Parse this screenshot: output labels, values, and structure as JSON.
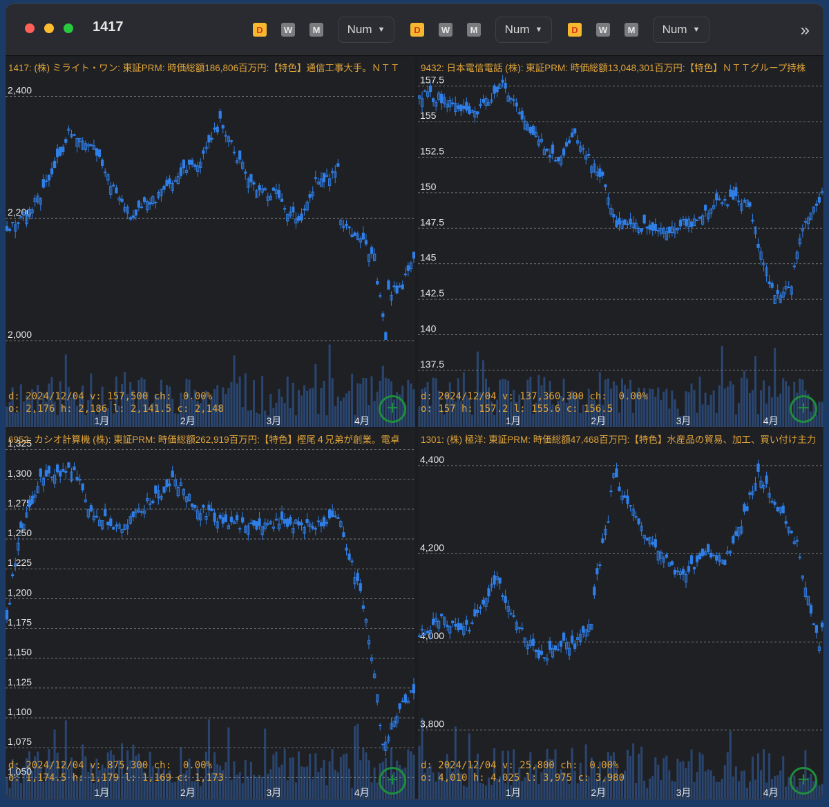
{
  "window": {
    "title": "1417"
  },
  "toolbar": {
    "groups": [
      {
        "d": "D",
        "w": "W",
        "m": "M",
        "num": "Num"
      },
      {
        "d": "D",
        "w": "W",
        "m": "M",
        "num": "Num"
      },
      {
        "d": "D",
        "w": "W",
        "m": "M",
        "num": "Num"
      }
    ],
    "more_icon": "chevrons-right-icon"
  },
  "colors": {
    "candle": "#2f7fe8",
    "volume": "#2a4670",
    "header_text": "#e0a43a",
    "plus": "#1f8e3c"
  },
  "chart_data": [
    {
      "type": "candlestick",
      "header": "1417: (株) ミライト・ワン: 東証PRM: 時価総額186,806百万円:【特色】通信工事大手。ＮＴＴ",
      "y_ticks": [
        "2,400",
        "2,200",
        "2,000"
      ],
      "y_values": [
        2400,
        2200,
        2000
      ],
      "ylim": [
        1870,
        2440
      ],
      "x_ticks": [
        "1月",
        "2月",
        "3月",
        "4月"
      ],
      "info_line1": "d: 2024/12/04 v: 157,500 ch:  0.00%",
      "info_line2": "o: 2,176 h: 2,186 l: 2,141.5 c: 2,148",
      "anchors": [
        [
          0,
          2185
        ],
        [
          8,
          2210
        ],
        [
          16,
          2270
        ],
        [
          22,
          2340
        ],
        [
          32,
          2310
        ],
        [
          38,
          2250
        ],
        [
          44,
          2205
        ],
        [
          52,
          2230
        ],
        [
          60,
          2270
        ],
        [
          70,
          2300
        ],
        [
          76,
          2360
        ],
        [
          82,
          2300
        ],
        [
          90,
          2245
        ],
        [
          96,
          2240
        ],
        [
          104,
          2190
        ],
        [
          110,
          2260
        ],
        [
          118,
          2280
        ],
        [
          119,
          2190
        ],
        [
          125,
          2170
        ],
        [
          131,
          2135
        ],
        [
          135,
          2000
        ],
        [
          136,
          2080
        ],
        [
          141,
          2090
        ],
        [
          145,
          2140
        ]
      ],
      "seed": 11
    },
    {
      "type": "candlestick",
      "header": "9432: 日本電信電話 (株): 東証PRM: 時価総額13,048,301百万円:【特色】ＮＴＴグループ持株",
      "y_ticks": [
        "157.5",
        "155",
        "152.5",
        "150",
        "147.5",
        "145",
        "142.5",
        "140",
        "137.5"
      ],
      "y_values": [
        157.5,
        155,
        152.5,
        150,
        147.5,
        145,
        142.5,
        140,
        137.5
      ],
      "ylim": [
        134,
        158.5
      ],
      "x_ticks": [
        "1月",
        "2月",
        "3月",
        "4月"
      ],
      "info_line1": "d: 2024/12/04 v: 137,360,300 ch:  0.00%",
      "info_line2": "o: 157 h: 157.2 l: 155.6 c: 156.5",
      "anchors": [
        [
          0,
          157
        ],
        [
          10,
          156.5
        ],
        [
          20,
          155.5
        ],
        [
          30,
          157.5
        ],
        [
          40,
          154.5
        ],
        [
          50,
          152
        ],
        [
          56,
          154
        ],
        [
          66,
          151
        ],
        [
          70,
          148
        ],
        [
          80,
          147.5
        ],
        [
          90,
          147.5
        ],
        [
          100,
          148
        ],
        [
          108,
          149.5
        ],
        [
          118,
          149.5
        ],
        [
          122,
          146.5
        ],
        [
          128,
          142.5
        ],
        [
          134,
          143.5
        ],
        [
          138,
          147.5
        ],
        [
          145,
          150
        ]
      ],
      "seed": 29
    },
    {
      "type": "candlestick",
      "header": "6952: カシオ計算機 (株): 東証PRM: 時価総額262,919百万円:【特色】樫尾４兄弟が創業。電卓",
      "y_ticks": [
        "1,325",
        "1,300",
        "1,275",
        "1,250",
        "1,225",
        "1,200",
        "1,175",
        "1,150",
        "1,125",
        "1,100",
        "1,075",
        "1,050"
      ],
      "y_values": [
        1325,
        1300,
        1275,
        1250,
        1225,
        1200,
        1175,
        1150,
        1125,
        1100,
        1075,
        1050
      ],
      "ylim": [
        1038,
        1330
      ],
      "x_ticks": [
        "1月",
        "2月",
        "3月",
        "4月"
      ],
      "info_line1": "d: 2024/12/04 v: 875,300 ch:  0.00%",
      "info_line2": "o: 1,174.5 h: 1,179 l: 1,169 c: 1,173",
      "anchors": [
        [
          0,
          1185
        ],
        [
          5,
          1260
        ],
        [
          12,
          1300
        ],
        [
          24,
          1310
        ],
        [
          30,
          1270
        ],
        [
          40,
          1260
        ],
        [
          50,
          1280
        ],
        [
          60,
          1300
        ],
        [
          68,
          1275
        ],
        [
          78,
          1265
        ],
        [
          88,
          1260
        ],
        [
          98,
          1265
        ],
        [
          108,
          1260
        ],
        [
          118,
          1270
        ],
        [
          122,
          1235
        ],
        [
          126,
          1205
        ],
        [
          131,
          1140
        ],
        [
          134,
          1075
        ],
        [
          138,
          1100
        ],
        [
          142,
          1115
        ],
        [
          145,
          1125
        ]
      ],
      "seed": 47
    },
    {
      "type": "candlestick",
      "header": "1301: (株) 極洋: 東証PRM: 時価総額47,468百万円:【特色】水産品の貿易、加工、買い付け主力",
      "y_ticks": [
        "4,400",
        "4,200",
        "4,000",
        "3,800"
      ],
      "y_values": [
        4400,
        4200,
        4000,
        3800
      ],
      "ylim": [
        3660,
        4450
      ],
      "x_ticks": [
        "1月",
        "2月",
        "3月",
        "4月"
      ],
      "info_line1": "d: 2024/12/04 v: 25,800 ch:  0.00%",
      "info_line2": "o: 4,010 h: 4,025 l: 3,975 c: 3,980",
      "anchors": [
        [
          0,
          4020
        ],
        [
          8,
          4050
        ],
        [
          18,
          4030
        ],
        [
          28,
          4150
        ],
        [
          34,
          4050
        ],
        [
          44,
          3960
        ],
        [
          52,
          4000
        ],
        [
          56,
          3990
        ],
        [
          62,
          4050
        ],
        [
          64,
          4150
        ],
        [
          68,
          4280
        ],
        [
          70,
          4380
        ],
        [
          76,
          4300
        ],
        [
          86,
          4200
        ],
        [
          94,
          4150
        ],
        [
          104,
          4200
        ],
        [
          110,
          4180
        ],
        [
          116,
          4270
        ],
        [
          122,
          4380
        ],
        [
          128,
          4320
        ],
        [
          136,
          4220
        ],
        [
          140,
          4100
        ],
        [
          144,
          4000
        ],
        [
          150,
          4200
        ]
      ],
      "seed": 63
    }
  ]
}
